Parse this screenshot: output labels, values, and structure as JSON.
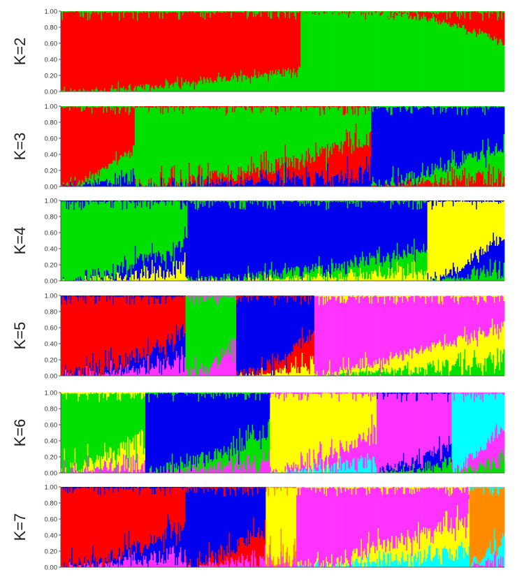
{
  "chart_data": [
    {
      "type": "bar",
      "label": "K=2",
      "ylim": [
        0,
        1
      ],
      "yticks": [
        "0.00",
        "0.20",
        "0.40",
        "0.60",
        "0.80",
        "1.00"
      ],
      "segments": [
        {
          "color": "#ff0000",
          "start": 0.0,
          "end": 1.0,
          "from": [
            1,
            1
          ],
          "to": [
            0.74,
            0.96
          ],
          "bands": [
            [
              0,
              1
            ]
          ]
        },
        {
          "color": "#00e000",
          "start": 0.0,
          "end": 1.0,
          "from": [
            0,
            0
          ],
          "to": [
            0.26,
            0.04
          ],
          "bands": [
            [
              0,
              0
            ]
          ]
        }
      ],
      "note_dominant": [
        "red 0-0.54",
        "green 0.54-1.00",
        "red top at right 0.90-1.00"
      ]
    }
  ],
  "panels": [
    {
      "label": "K=2",
      "yticks": [
        "0.00",
        "0.20",
        "0.40",
        "0.60",
        "0.80",
        "1.00"
      ],
      "regions": [
        {
          "start": 0.0,
          "end": 0.54,
          "colors": [
            "#00e000",
            "#ff0000"
          ],
          "fracA": [
            0.0,
            0.28
          ],
          "shape": "rise"
        },
        {
          "start": 0.54,
          "end": 1.0,
          "colors": [
            "#00e000",
            "#ff0000"
          ],
          "fracA": [
            0.99,
            0.6
          ],
          "shape": "fallEnd"
        }
      ]
    },
    {
      "label": "K=3",
      "yticks": [
        "0.00",
        "0.20",
        "0.40",
        "0.60",
        "0.80",
        "1.00"
      ],
      "regions": [
        {
          "start": 0.0,
          "end": 0.165,
          "colors": [
            "#0000ee",
            "#00e000",
            "#ff0000"
          ],
          "fracA": [
            0.0,
            0.5
          ],
          "shape": "rise",
          "noise": 0.05
        },
        {
          "start": 0.165,
          "end": 0.7,
          "colors": [
            "#0000ee",
            "#ff0000",
            "#00e000"
          ],
          "fracA": [
            0.0,
            0.6
          ],
          "shape": "rise",
          "noise": 0.1
        },
        {
          "start": 0.7,
          "end": 1.0,
          "colors": [
            "#ff0000",
            "#00e000",
            "#0000ee"
          ],
          "fracA": [
            0.0,
            0.5
          ],
          "shape": "riseEnd",
          "noise": 0.08,
          "flip": true
        }
      ]
    },
    {
      "label": "K=4",
      "yticks": [
        "0.00",
        "0.20",
        "0.40",
        "0.60",
        "0.80",
        "1.00"
      ],
      "regions": [
        {
          "start": 0.0,
          "end": 0.285,
          "colors": [
            "#ffff00",
            "#0000ee",
            "#00e000"
          ],
          "fracA": [
            0.0,
            0.5
          ],
          "shape": "rise",
          "noise": 0.1
        },
        {
          "start": 0.285,
          "end": 0.825,
          "colors": [
            "#ffff00",
            "#00e000",
            "#0000ee"
          ],
          "fracA": [
            0.0,
            0.4
          ],
          "shape": "rise",
          "noise": 0.07,
          "flip": true
        },
        {
          "start": 0.825,
          "end": 1.0,
          "colors": [
            "#00e000",
            "#0000ee",
            "#ffff00"
          ],
          "fracA": [
            0.0,
            0.55
          ],
          "shape": "riseEnd",
          "noise": 0.08,
          "flip": true
        }
      ]
    },
    {
      "label": "K=5",
      "yticks": [
        "0.00",
        "0.20",
        "0.40",
        "0.60",
        "0.80",
        "1.00"
      ],
      "regions": [
        {
          "start": 0.0,
          "end": 0.28,
          "colors": [
            "#ff33ff",
            "#0000ee",
            "#ff0000"
          ],
          "fracA": [
            0.0,
            0.55
          ],
          "shape": "rise",
          "noise": 0.1
        },
        {
          "start": 0.28,
          "end": 0.395,
          "colors": [
            "#ff33ff",
            "#00e000"
          ],
          "fracA": [
            0.0,
            0.45
          ],
          "shape": "rise",
          "noise": 0.1
        },
        {
          "start": 0.395,
          "end": 0.57,
          "colors": [
            "#ffff00",
            "#ff0000",
            "#0000ee"
          ],
          "fracA": [
            0.0,
            0.55
          ],
          "shape": "rise",
          "noise": 0.08,
          "flip": true
        },
        {
          "start": 0.57,
          "end": 1.0,
          "colors": [
            "#00e000",
            "#ffff00",
            "#ff33ff"
          ],
          "fracA": [
            0.0,
            0.62
          ],
          "shape": "riseEnd",
          "noise": 0.07,
          "flip": true
        }
      ]
    },
    {
      "label": "K=6",
      "yticks": [
        "0.00",
        "0.20",
        "0.40",
        "0.60",
        "0.80",
        "1.00"
      ],
      "regions": [
        {
          "start": 0.0,
          "end": 0.19,
          "colors": [
            "#ff33ff",
            "#ffff00",
            "#00e000"
          ],
          "fracA": [
            0.0,
            0.5
          ],
          "shape": "rise",
          "noise": 0.12
        },
        {
          "start": 0.19,
          "end": 0.47,
          "colors": [
            "#ff33ff",
            "#00e000",
            "#0000ee"
          ],
          "fracA": [
            0.0,
            0.55
          ],
          "shape": "rise",
          "noise": 0.1,
          "flip": true
        },
        {
          "start": 0.47,
          "end": 0.71,
          "colors": [
            "#00ffff",
            "#ff33ff",
            "#ffff00"
          ],
          "fracA": [
            0.0,
            0.55
          ],
          "shape": "rise",
          "noise": 0.1,
          "flip": true
        },
        {
          "start": 0.71,
          "end": 0.88,
          "colors": [
            "#00e000",
            "#0000ee",
            "#ff33ff"
          ],
          "fracA": [
            0.0,
            0.35
          ],
          "shape": "riseEnd",
          "noise": 0.07,
          "flip": true
        },
        {
          "start": 0.88,
          "end": 1.0,
          "colors": [
            "#00e000",
            "#ff33ff",
            "#00ffff"
          ],
          "fracA": [
            0.0,
            0.62
          ],
          "shape": "riseEnd",
          "noise": 0.08,
          "flip": true
        }
      ]
    },
    {
      "label": "K=7",
      "yticks": [
        "0.00",
        "0.20",
        "0.40",
        "0.60",
        "0.80",
        "1.00"
      ],
      "regions": [
        {
          "start": 0.0,
          "end": 0.28,
          "colors": [
            "#ff33ff",
            "#0000ee",
            "#ff0000"
          ],
          "fracA": [
            0.0,
            0.55
          ],
          "shape": "rise",
          "noise": 0.1
        },
        {
          "start": 0.28,
          "end": 0.46,
          "colors": [
            "#ff33ff",
            "#ff0000",
            "#0000ee"
          ],
          "fracA": [
            0.0,
            0.5
          ],
          "shape": "rise",
          "noise": 0.1,
          "flip": true
        },
        {
          "start": 0.46,
          "end": 0.53,
          "colors": [
            "#ff33ff",
            "#ff8c00",
            "#ffff00"
          ],
          "fracA": [
            0.0,
            0.3
          ],
          "shape": "flat",
          "noise": 0.15
        },
        {
          "start": 0.53,
          "end": 0.92,
          "colors": [
            "#00ffff",
            "#ffff00",
            "#ff33ff"
          ],
          "fracA": [
            0.0,
            0.6
          ],
          "shape": "riseEnd",
          "noise": 0.1,
          "flip": true
        },
        {
          "start": 0.92,
          "end": 1.0,
          "colors": [
            "#ff33ff",
            "#00ffff",
            "#ff8c00"
          ],
          "fracA": [
            0.0,
            0.4
          ],
          "shape": "riseEnd",
          "noise": 0.1,
          "flip": true
        }
      ]
    }
  ]
}
